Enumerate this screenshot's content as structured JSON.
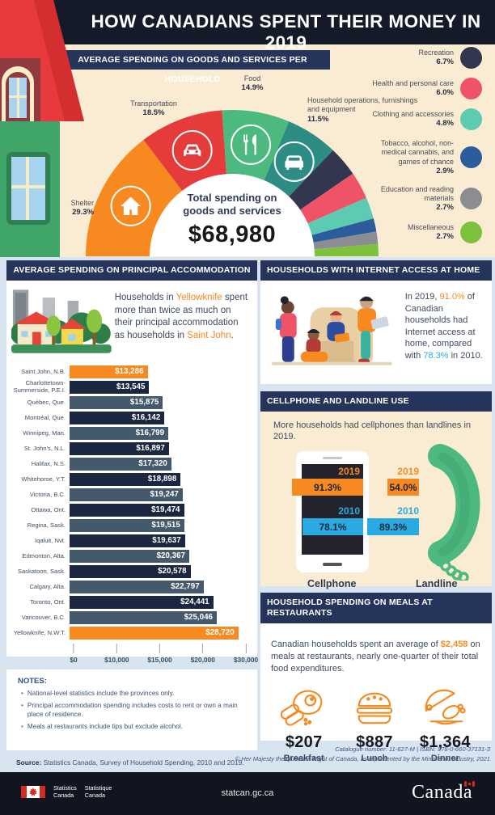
{
  "header": {
    "title": "HOW CANADIANS SPENT THEIR MONEY IN 2019"
  },
  "chart_data": [
    {
      "type": "pie",
      "variant": "half-donut",
      "title": "AVERAGE SPENDING ON GOODS AND SERVICES PER HOUSEHOLD",
      "center_label_1": "Total spending on",
      "center_label_2": "goods and services",
      "center_value": "$68,980",
      "legend_position": "right",
      "segments": [
        {
          "label": "Shelter",
          "pct": 29.3,
          "pct_display": "29.3%",
          "color": "#f6891f",
          "icon": "house"
        },
        {
          "label": "Transportation",
          "pct": 18.5,
          "pct_display": "18.5%",
          "color": "#e63b3b",
          "icon": "car"
        },
        {
          "label": "Food",
          "pct": 14.9,
          "pct_display": "14.9%",
          "color": "#4cba7f",
          "icon": "utensils"
        },
        {
          "label": "Household operations, furnishings and equipment",
          "pct": 11.5,
          "pct_display": "11.5%",
          "color": "#2d8d84",
          "icon": "couch"
        },
        {
          "label": "Recreation",
          "pct": 6.7,
          "pct_display": "6.7%",
          "color": "#32374f"
        },
        {
          "label": "Health and personal care",
          "pct": 6.0,
          "pct_display": "6.0%",
          "color": "#ef5368"
        },
        {
          "label": "Clothing and accessories",
          "pct": 4.8,
          "pct_display": "4.8%",
          "color": "#5dcbb2"
        },
        {
          "label": "Tobacco, alcohol, non-medical cannabis, and games of chance",
          "pct": 2.9,
          "pct_display": "2.9%",
          "color": "#2c5c9c"
        },
        {
          "label": "Education and reading materials",
          "pct": 2.7,
          "pct_display": "2.7%",
          "color": "#8b8d92"
        },
        {
          "label": "Miscellaneous",
          "pct": 2.7,
          "pct_display": "2.7%",
          "color": "#7cc23d"
        }
      ]
    },
    {
      "type": "bar",
      "orientation": "horizontal",
      "title": "AVERAGE SPENDING ON PRINCIPAL ACCOMMODATION",
      "intro": {
        "p1": "Households in ",
        "hl1": "Yellowknife",
        "p2": " spent more than twice as much on their principal accommodation as households in ",
        "hl2": "Saint John",
        "p3": "."
      },
      "axis_max": 30000,
      "x_ticks": [
        "$0",
        "$10,000",
        "$15,000",
        "$20,000",
        "$30,000"
      ],
      "bars": [
        {
          "label": "Saint John, N.B.",
          "value": 13286,
          "display": "$13,286",
          "color": "highlight"
        },
        {
          "label": "Charlottetown-Summerside, P.E.I.",
          "value": 13545,
          "display": "$13,545",
          "color": "dark"
        },
        {
          "label": "Québec, Que.",
          "value": 15875,
          "display": "$15,875",
          "color": "slate"
        },
        {
          "label": "Montréal, Que.",
          "value": 16142,
          "display": "$16,142",
          "color": "dark"
        },
        {
          "label": "Winnipeg, Man.",
          "value": 16799,
          "display": "$16,799",
          "color": "slate"
        },
        {
          "label": "St. John's, N.L.",
          "value": 16897,
          "display": "$16,897",
          "color": "dark"
        },
        {
          "label": "Halifax, N.S.",
          "value": 17320,
          "display": "$17,320",
          "color": "slate"
        },
        {
          "label": "Whitehorse, Y.T.",
          "value": 18898,
          "display": "$18,898",
          "color": "dark"
        },
        {
          "label": "Victoria, B.C.",
          "value": 19247,
          "display": "$19,247",
          "color": "slate"
        },
        {
          "label": "Ottawa, Ont.",
          "value": 19474,
          "display": "$19,474",
          "color": "dark"
        },
        {
          "label": "Regina, Sask.",
          "value": 19515,
          "display": "$19,515",
          "color": "slate"
        },
        {
          "label": "Iqaluit, Nvt.",
          "value": 19637,
          "display": "$19,637",
          "color": "dark"
        },
        {
          "label": "Edmonton, Alta.",
          "value": 20367,
          "display": "$20,367",
          "color": "slate"
        },
        {
          "label": "Saskatoon, Sask.",
          "value": 20578,
          "display": "$20,578",
          "color": "dark"
        },
        {
          "label": "Calgary, Alta.",
          "value": 22797,
          "display": "$22,797",
          "color": "slate"
        },
        {
          "label": "Toronto, Ont.",
          "value": 24441,
          "display": "$24,441",
          "color": "dark"
        },
        {
          "label": "Vancouver, B.C.",
          "value": 25046,
          "display": "$25,046",
          "color": "slate"
        },
        {
          "label": "Yellowknife, N.W.T.",
          "value": 28720,
          "display": "$28,720",
          "color": "highlight"
        }
      ]
    },
    {
      "type": "bar",
      "title": "CELLPHONE AND LANDLINE USE",
      "subtitle": "More households had cellphones than landlines in 2019.",
      "groups": [
        {
          "label": "Cellphone",
          "series": [
            {
              "year": "2019",
              "value": 91.3,
              "display": "91.3%"
            },
            {
              "year": "2010",
              "value": 78.1,
              "display": "78.1%"
            }
          ]
        },
        {
          "label": "Landline",
          "series": [
            {
              "year": "2019",
              "value": 54.0,
              "display": "54.0%"
            },
            {
              "year": "2010",
              "value": 89.3,
              "display": "89.3%"
            }
          ]
        }
      ],
      "series_colors": {
        "y2019": "#f6891f",
        "y2010": "#29abe2"
      }
    },
    {
      "type": "table",
      "title": "HOUSEHOLD SPENDING ON MEALS AT RESTAURANTS",
      "text": {
        "p1": "Canadian households spent an average of ",
        "hl": "$2,458",
        "p2": " on meals at restaurants, nearly one-quarter of their total food expenditures."
      },
      "items": [
        {
          "label": "Breakfast",
          "value": 207,
          "display": "$207",
          "icon": "breakfast"
        },
        {
          "label": "Lunch",
          "value": 887,
          "display": "$887",
          "icon": "lunch"
        },
        {
          "label": "Dinner",
          "value": 1364,
          "display": "$1,364",
          "icon": "dinner"
        }
      ]
    }
  ],
  "internet": {
    "title": "HOUSEHOLDS WITH INTERNET ACCESS AT HOME",
    "text": {
      "p1": "In 2019, ",
      "hl1": "91.0%",
      "p2": " of Canadian households had Internet access at home, compared with ",
      "hl2": "78.3%",
      "p3": " in 2010."
    }
  },
  "notes": {
    "heading": "NOTES:",
    "items": [
      "National-level statistics include the provinces only.",
      "Principal accommodation spending includes costs to rent or own a main place of residence.",
      "Meals at restaurants include tips but exclude alcohol."
    ]
  },
  "source": {
    "bold": "Source:",
    "text": " Statistics Canada, Survey of Household Spending, 2010 and 2019."
  },
  "catalogue": {
    "line1": "Catalogue number: 11-627-M  | ISBN: 978-0-660-37131-3",
    "line2": "© Her Majesty the Queen in Right of Canada, as represented by the Minister of Industry, 2021"
  },
  "footer": {
    "agency_en_1": "Statistics",
    "agency_en_2": "Canada",
    "agency_fr_1": "Statistique",
    "agency_fr_2": "Canada",
    "url": "statcan.gc.ca",
    "wordmark": "Canada"
  }
}
